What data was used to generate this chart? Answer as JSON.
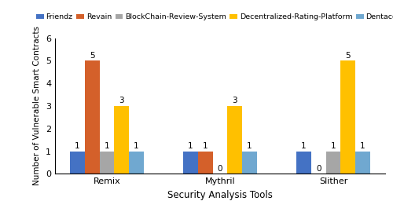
{
  "tools": [
    "Remix",
    "Mythril",
    "Slither"
  ],
  "series": [
    {
      "label": "Friendz",
      "color": "#4472C4",
      "values": [
        1,
        1,
        1
      ]
    },
    {
      "label": "Revain",
      "color": "#D4602A",
      "values": [
        5,
        1,
        0
      ]
    },
    {
      "label": "BlockChain-Review-System",
      "color": "#A6A6A6",
      "values": [
        1,
        0,
        1
      ]
    },
    {
      "label": "Decentralized-Rating-Platform",
      "color": "#FFC000",
      "values": [
        3,
        3,
        5
      ]
    },
    {
      "label": "Dentacoin",
      "color": "#70A8D0",
      "values": [
        1,
        1,
        1
      ]
    }
  ],
  "ylabel": "Number of Vulnerable Smart Contracts",
  "xlabel": "Security Analysis Tools",
  "ylim": [
    0,
    6
  ],
  "yticks": [
    0,
    1,
    2,
    3,
    4,
    5,
    6
  ],
  "bar_width": 0.13,
  "legend_fontsize": 6.8,
  "axis_label_fontsize": 8.5,
  "tick_fontsize": 8,
  "bar_label_fontsize": 7.5,
  "background_color": "#FFFFFF"
}
